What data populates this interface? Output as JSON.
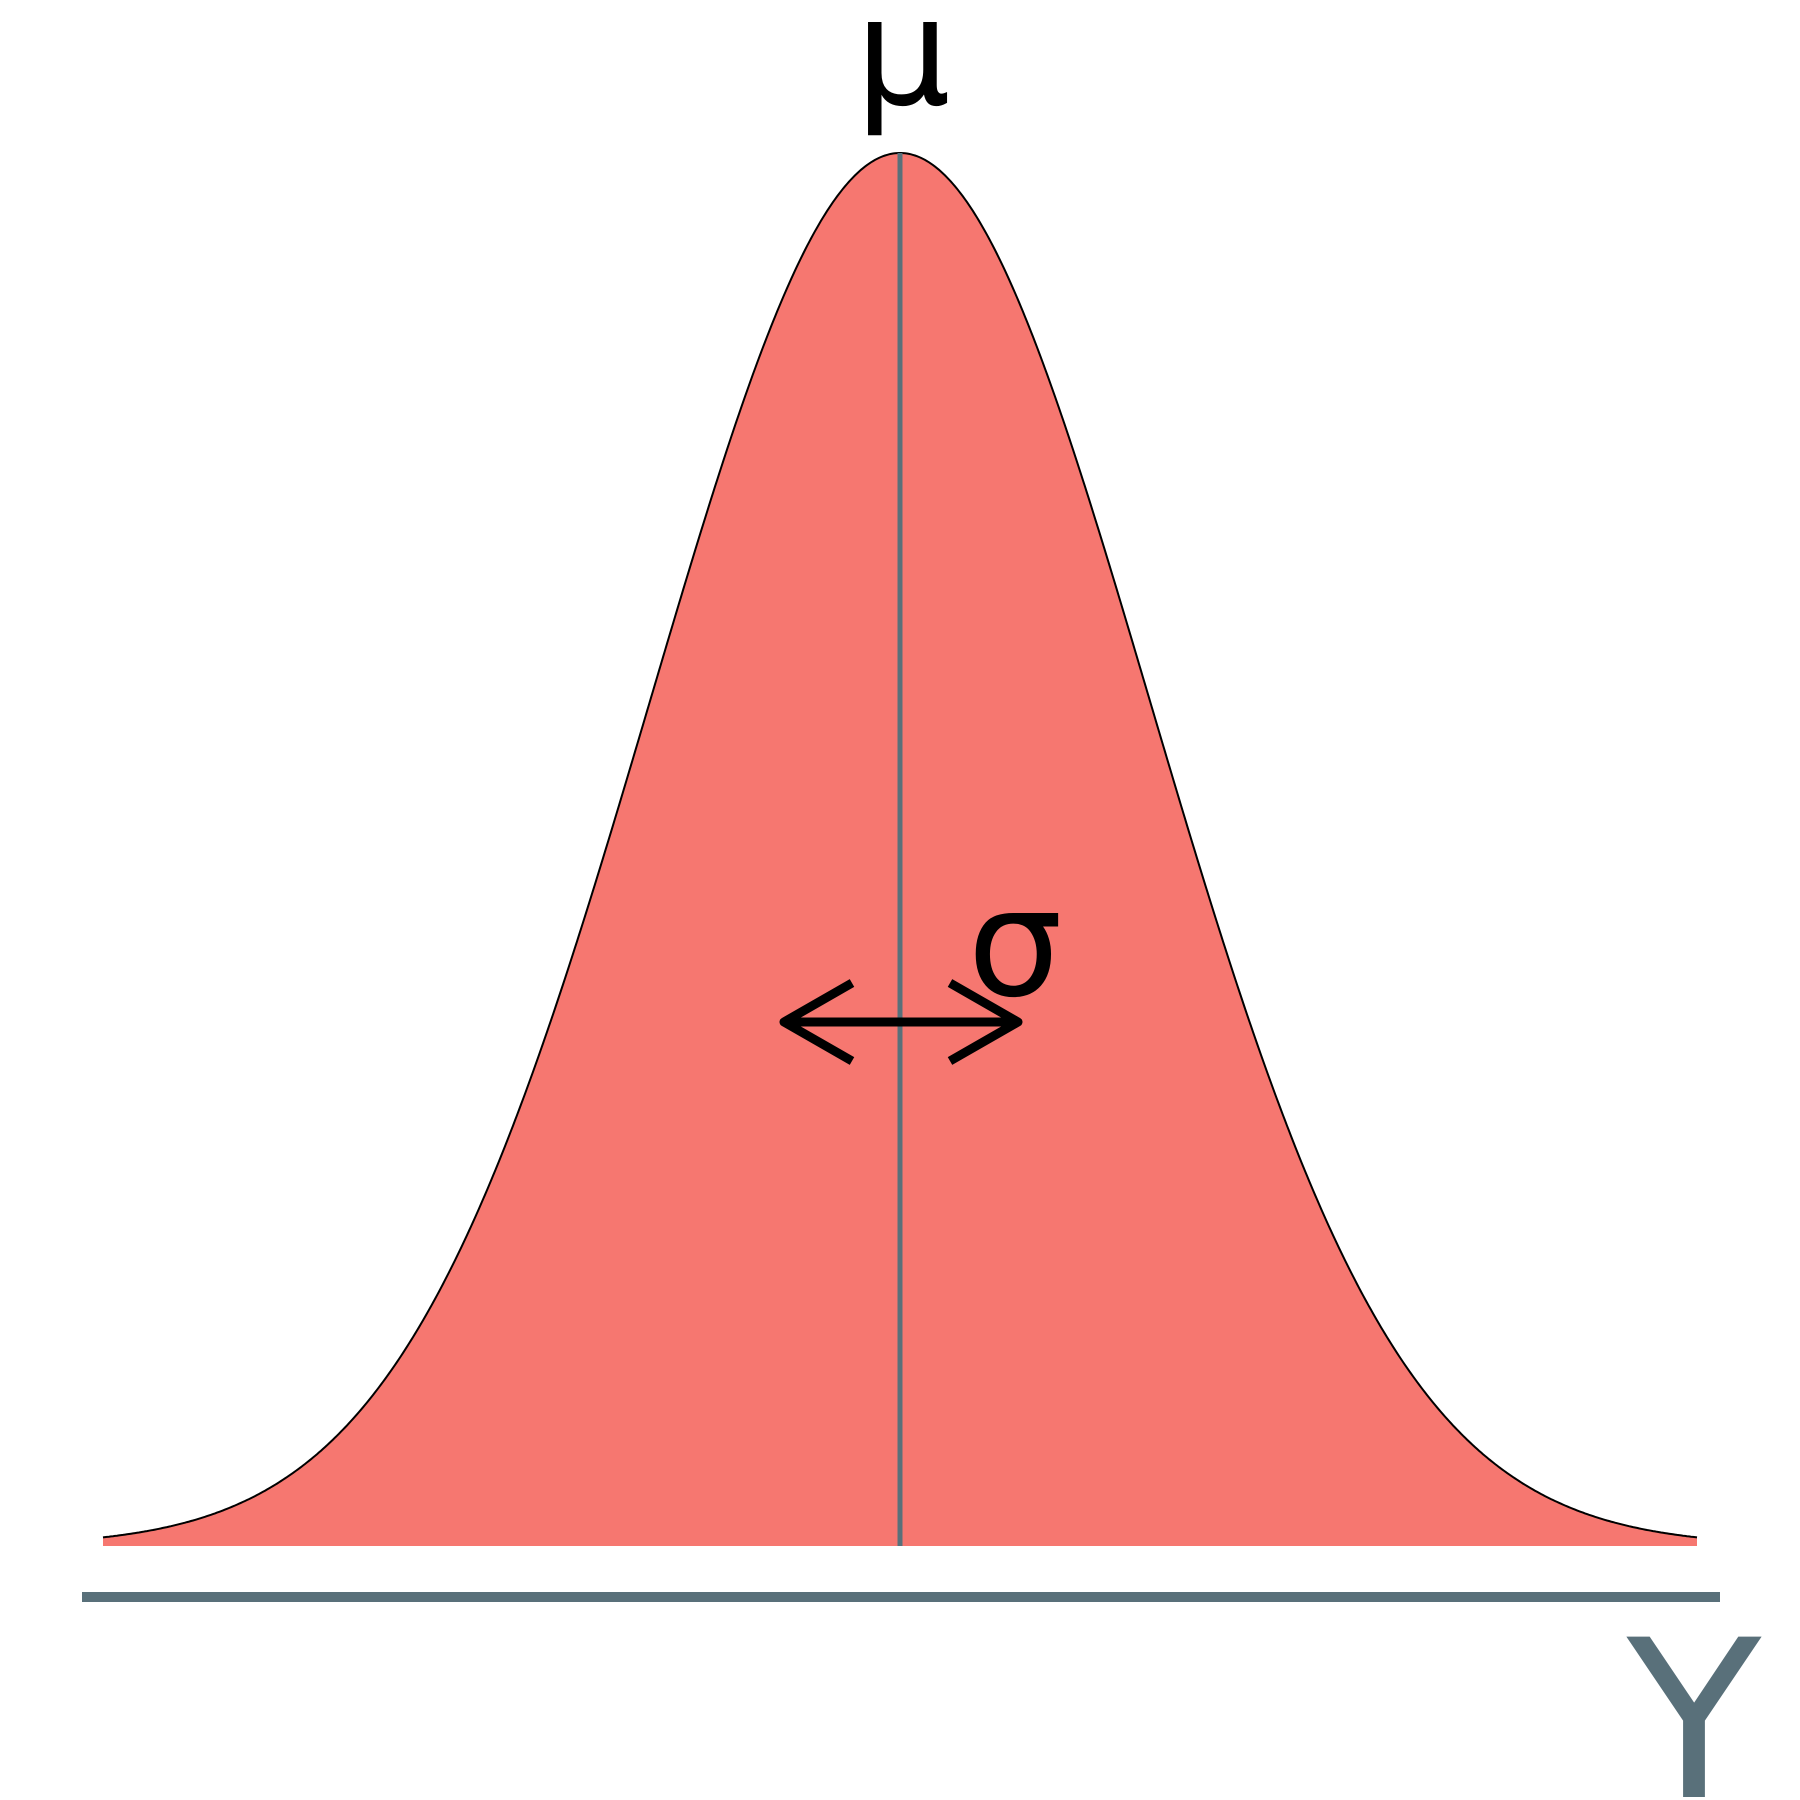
{
  "labels": {
    "mean": "μ",
    "spread": "σ",
    "axis": "Y"
  },
  "colors": {
    "curve_fill": "#f67770",
    "curve_outline": "#000000",
    "mean_line": "#59707a",
    "axis": "#59707a",
    "arrow": "#000000",
    "text": "#000000"
  },
  "icons": {
    "spread_arrow": "double-headed-arrow-icon"
  }
}
